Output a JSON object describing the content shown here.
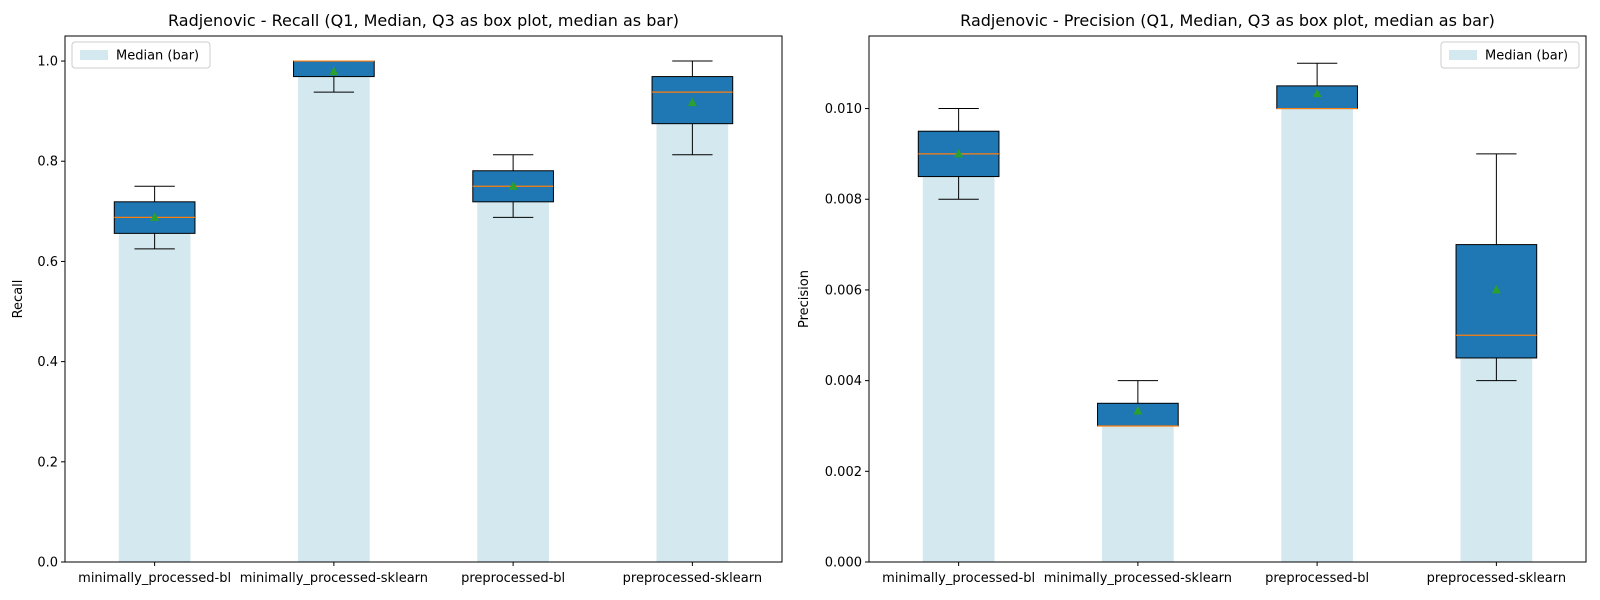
{
  "chart_data": [
    {
      "type": "box",
      "title": "Radjenovic - Recall (Q1, Median, Q3 as box plot, median as bar)",
      "xlabel": "",
      "ylabel": "Recall",
      "ylim": [
        0,
        1.05
      ],
      "yticks": [
        "0.0",
        "0.2",
        "0.4",
        "0.6",
        "0.8",
        "1.0"
      ],
      "ytick_values": [
        0,
        0.2,
        0.4,
        0.6,
        0.8,
        1.0
      ],
      "categories": [
        "minimally_processed-bl",
        "minimally_processed-sklearn",
        "preprocessed-bl",
        "preprocessed-sklearn"
      ],
      "legend": {
        "label": "Median (bar)",
        "position": "upper left"
      },
      "boxes": [
        {
          "whislo": 0.625,
          "q1": 0.656,
          "med": 0.688,
          "q3": 0.719,
          "whishi": 0.75,
          "mean": 0.688
        },
        {
          "whislo": 0.938,
          "q1": 0.969,
          "med": 1.0,
          "q3": 1.0,
          "whishi": 1.0,
          "mean": 0.979
        },
        {
          "whislo": 0.688,
          "q1": 0.719,
          "med": 0.75,
          "q3": 0.781,
          "whishi": 0.813,
          "mean": 0.75
        },
        {
          "whislo": 0.813,
          "q1": 0.875,
          "med": 0.938,
          "q3": 0.969,
          "whishi": 1.0,
          "mean": 0.917
        }
      ],
      "bars": [
        0.688,
        1.0,
        0.75,
        0.938
      ]
    },
    {
      "type": "box",
      "title": "Radjenovic - Precision (Q1, Median, Q3 as box plot, median as bar)",
      "xlabel": "",
      "ylabel": "Precision",
      "ylim": [
        0,
        0.0116
      ],
      "yticks": [
        "0.000",
        "0.002",
        "0.004",
        "0.006",
        "0.008",
        "0.010"
      ],
      "ytick_values": [
        0,
        0.002,
        0.004,
        0.006,
        0.008,
        0.01
      ],
      "categories": [
        "minimally_processed-bl",
        "minimally_processed-sklearn",
        "preprocessed-bl",
        "preprocessed-sklearn"
      ],
      "legend": {
        "label": "Median (bar)",
        "position": "upper right"
      },
      "boxes": [
        {
          "whislo": 0.008,
          "q1": 0.0085,
          "med": 0.009,
          "q3": 0.0095,
          "whishi": 0.01,
          "mean": 0.009
        },
        {
          "whislo": 0.003,
          "q1": 0.003,
          "med": 0.003,
          "q3": 0.0035,
          "whishi": 0.004,
          "mean": 0.00333
        },
        {
          "whislo": 0.01,
          "q1": 0.01,
          "med": 0.01,
          "q3": 0.0105,
          "whishi": 0.011,
          "mean": 0.01033
        },
        {
          "whislo": 0.004,
          "q1": 0.0045,
          "med": 0.005,
          "q3": 0.007,
          "whishi": 0.009,
          "mean": 0.006
        }
      ],
      "bars": [
        0.009,
        0.003,
        0.01,
        0.005
      ]
    }
  ],
  "colors": {
    "bar": "#d3e9ef",
    "box_fill": "#1f77b4",
    "median_line": "#ff7f0e",
    "mean_marker": "#2ca02c",
    "axis": "#000000"
  }
}
